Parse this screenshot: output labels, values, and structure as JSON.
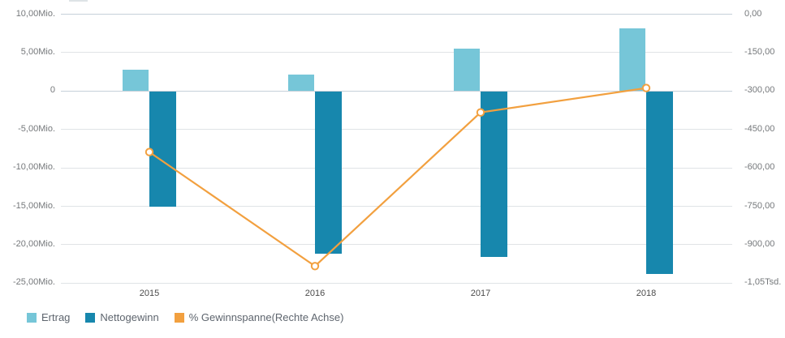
{
  "chart_data": {
    "type": "combo",
    "subtype": "clustered bars with line on secondary axis",
    "title": "",
    "categories": [
      "2015",
      "2016",
      "2017",
      "2018"
    ],
    "series": [
      {
        "name": "Ertrag",
        "type": "bar",
        "axis": "left",
        "color": "#76C6D8",
        "values": [
          2.7,
          2.1,
          5.5,
          8.1
        ],
        "unit": "Mio."
      },
      {
        "name": "Nettogewinn",
        "type": "bar",
        "axis": "left",
        "color": "#1787AD",
        "values": [
          -15.1,
          -21.2,
          -21.6,
          -23.9
        ],
        "unit": "Mio."
      },
      {
        "name": "% Gewinnspanne(Rechte Achse)",
        "type": "line",
        "axis": "right",
        "color": "#F2A03F",
        "marker_fill": "#FFFFFF",
        "values": [
          -540,
          -985,
          -385,
          -290
        ]
      }
    ],
    "left_axis": {
      "tick_labels": [
        "10,00Mio.",
        "5,00Mio.",
        "0",
        "-5,00Mio.",
        "-10,00Mio.",
        "-15,00Mio.",
        "-20,00Mio.",
        "-25,00Mio."
      ],
      "tick_values": [
        10,
        5,
        0,
        -5,
        -10,
        -15,
        -20,
        -25
      ],
      "range": [
        -25,
        10
      ],
      "unit": "Mio."
    },
    "right_axis": {
      "tick_labels": [
        "0,00",
        "-150,00",
        "-300,00",
        "-450,00",
        "-600,00",
        "-750,00",
        "-900,00",
        "-1,05Tsd."
      ],
      "tick_values": [
        0,
        -150,
        -300,
        -450,
        -600,
        -750,
        -900,
        -1050
      ],
      "range": [
        -1050,
        0
      ]
    },
    "grid": true,
    "legend_position": "bottom-left",
    "colors": {
      "background": "#FFFFFF",
      "gridline": "#E0E3E6",
      "zero_line": "#C6D0D9",
      "axis_text": "#75787B",
      "year_text": "#4B4B4B",
      "legend_text": "#5E656E",
      "artifact_line": "#DEE3E6"
    }
  },
  "legend": {
    "items": [
      {
        "label": "Ertrag",
        "color": "#76C6D8"
      },
      {
        "label": "Nettogewinn",
        "color": "#1787AD"
      },
      {
        "label": "% Gewinnspanne(Rechte Achse)",
        "color": "#F2A03F"
      }
    ]
  }
}
